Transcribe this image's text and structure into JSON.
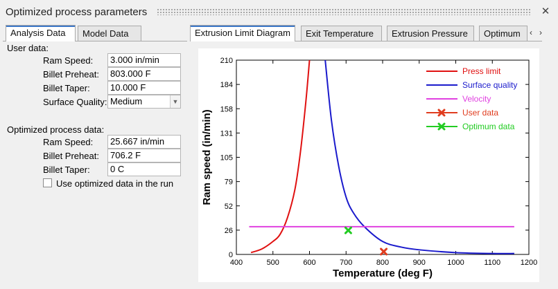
{
  "window": {
    "title": "Optimized process parameters",
    "close_icon": "close-icon"
  },
  "left_tabs": [
    {
      "label": "Analysis Data",
      "active": true
    },
    {
      "label": "Model Data",
      "active": false
    }
  ],
  "right_tabs": [
    {
      "label": "Extrusion Limit Diagram",
      "active": true
    },
    {
      "label": "Exit Temperature",
      "active": false
    },
    {
      "label": "Extrusion Pressure",
      "active": false
    },
    {
      "label": "Optimum",
      "active": false
    }
  ],
  "user_data": {
    "heading": "User data:",
    "ram_speed_label": "Ram Speed:",
    "ram_speed_value": "3.000 in/min",
    "billet_preheat_label": "Billet Preheat:",
    "billet_preheat_value": "803.000 F",
    "billet_taper_label": "Billet Taper:",
    "billet_taper_value": "10.000 F",
    "surface_quality_label": "Surface Quality:",
    "surface_quality_value": "Medium"
  },
  "optimized_data": {
    "heading": "Optimized process data:",
    "ram_speed_label": "Ram Speed:",
    "ram_speed_value": "25.667 in/min",
    "billet_preheat_label": "Billet Preheat:",
    "billet_preheat_value": "706.2 F",
    "billet_taper_label": "Billet Taper:",
    "billet_taper_value": "0 C",
    "use_optimized_label": "Use optimized data in the run",
    "use_optimized_checked": false
  },
  "colors": {
    "accent": "#3c78c8",
    "press": "#e01010",
    "surface": "#1a1acc",
    "velocity": "#e040e0",
    "user": "#e03c1e",
    "optimum": "#22cc22"
  },
  "chart_data": {
    "type": "line",
    "xlabel": "Temperature (deg F)",
    "ylabel": "Ram speed (in/min)",
    "xlim": [
      400,
      1200
    ],
    "ylim": [
      0,
      210
    ],
    "xticks": [
      "400",
      "500",
      "600",
      "700",
      "800",
      "900",
      "1000",
      "1100",
      "1200"
    ],
    "yticks": [
      "0",
      "26",
      "52",
      "79",
      "105",
      "131",
      "158",
      "184",
      "210"
    ],
    "legend_position": "top-right",
    "series": [
      {
        "name": "Press limit",
        "color": "#e01010",
        "marker": "none",
        "x": [
          440,
          470,
          500,
          520,
          540,
          560,
          575,
          590,
          600
        ],
        "y": [
          2,
          6,
          14,
          22,
          40,
          70,
          110,
          165,
          210
        ]
      },
      {
        "name": "Surface quality",
        "color": "#1a1acc",
        "marker": "none",
        "x": [
          643,
          660,
          680,
          700,
          720,
          750,
          800,
          850,
          900,
          1000,
          1100,
          1160
        ],
        "y": [
          210,
          145,
          95,
          62,
          45,
          30,
          14,
          8,
          5,
          2,
          1,
          1
        ]
      },
      {
        "name": "Velocity",
        "color": "#e040e0",
        "marker": "none",
        "x": [
          435,
          1160
        ],
        "y": [
          30,
          30
        ]
      },
      {
        "name": "User data",
        "color": "#e03c1e",
        "marker": "x",
        "x": [
          803
        ],
        "y": [
          3
        ]
      },
      {
        "name": "Optimum data",
        "color": "#22cc22",
        "marker": "x",
        "x": [
          706
        ],
        "y": [
          26
        ]
      }
    ]
  }
}
